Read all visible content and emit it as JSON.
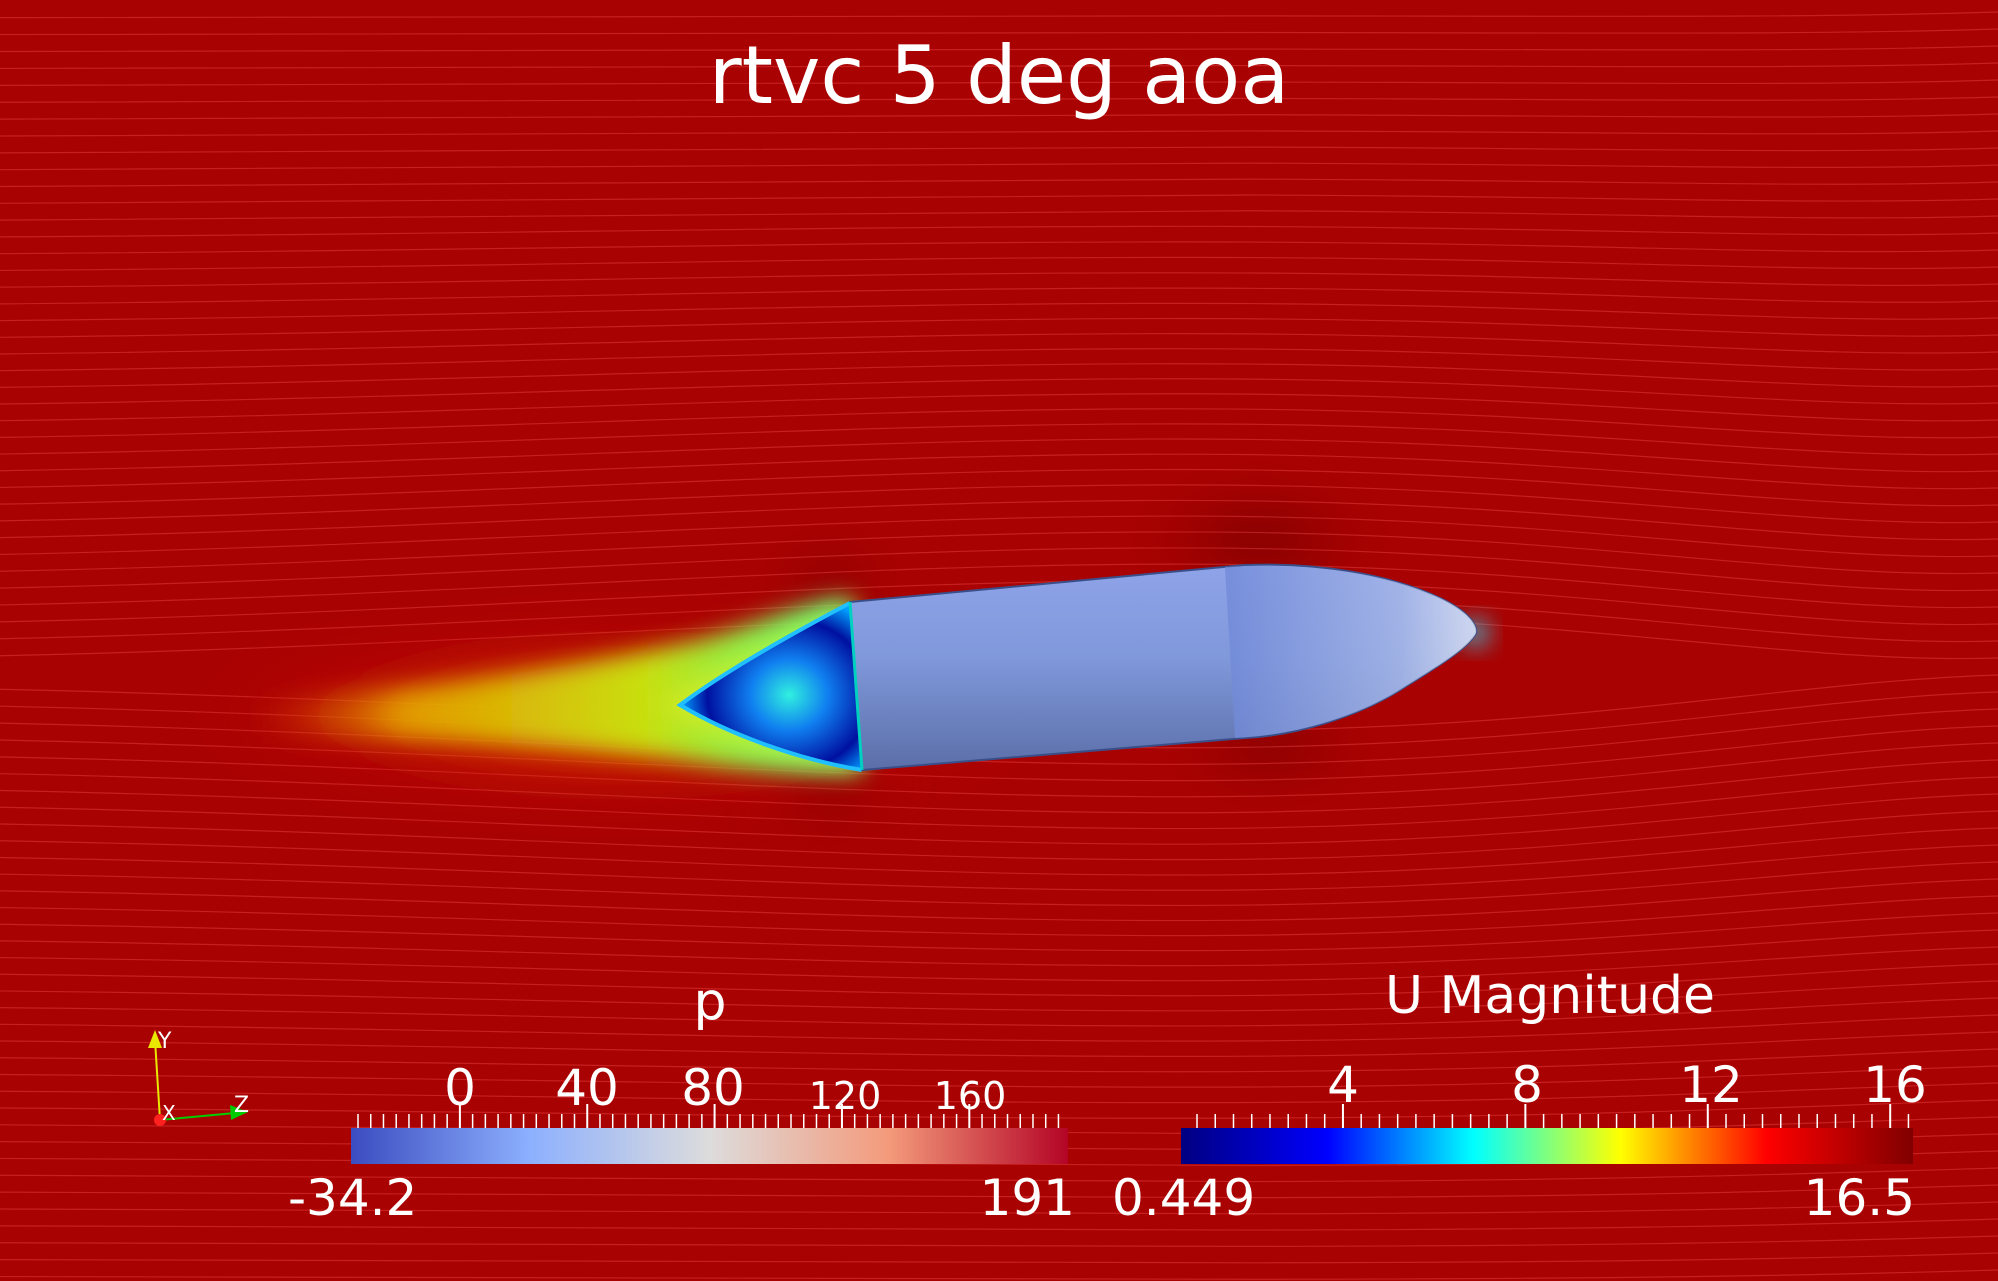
{
  "title": "rtvc 5 deg aoa",
  "pressure_bar": {
    "title": "p",
    "ticks": [
      "0",
      "40",
      "80",
      "120",
      "160"
    ],
    "min": "-34.2",
    "max": "191",
    "colors": [
      "#3b4cc0",
      "#8db0fe",
      "#dddcdc",
      "#f49a7b",
      "#b40426"
    ]
  },
  "velocity_bar": {
    "title": "U Magnitude",
    "ticks": [
      "4",
      "8",
      "12",
      "16"
    ],
    "min": "0.449",
    "max": "16.5",
    "colors": [
      "#000080",
      "#0000ff",
      "#00ffff",
      "#ffff00",
      "#ff0000",
      "#800000"
    ]
  },
  "axes": {
    "y": "Y",
    "x": "X",
    "z": "Z"
  },
  "colors": {
    "background": "#a90202",
    "text": "#ffffff"
  }
}
